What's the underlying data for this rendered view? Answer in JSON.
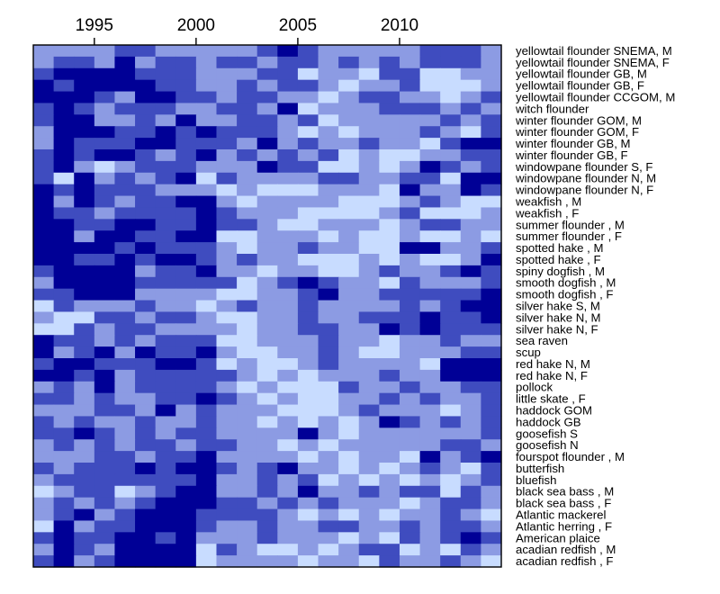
{
  "chart_data": {
    "type": "heatmap",
    "x_tick_labels": [
      "1995",
      "2000",
      "2005",
      "2010"
    ],
    "x_tick_years": [
      1995,
      2000,
      2005,
      2010
    ],
    "years": [
      1992,
      1993,
      1994,
      1995,
      1996,
      1997,
      1998,
      1999,
      2000,
      2001,
      2002,
      2003,
      2004,
      2005,
      2006,
      2007,
      2008,
      2009,
      2010,
      2011,
      2012,
      2013,
      2014
    ],
    "rows": [
      "yellowtail flounder SNEMA, M",
      "yellowtail flounder SNEMA, F",
      "yellowtail flounder GB, M",
      "yellowtail flounder GB, F",
      "yellowtail flounder CCGOM, M",
      "witch flounder",
      "winter flounder GOM, M",
      "winter flounder GOM, F",
      "winter flounder GB, M",
      "winter flounder GB, F",
      "windowpane flounder S, F",
      "windowpane flounder N, M",
      "windowpane flounder N, F",
      "weakfish , M",
      "weakfish , F",
      "summer flounder , M",
      "summer flounder , F",
      "spotted hake , M",
      "spotted hake , F",
      "spiny dogfish , M",
      "smooth dogfish , M",
      "smooth dogfish , F",
      "silver hake S, M",
      "silver hake N, M",
      "silver hake N, F",
      "sea raven",
      "scup",
      "red hake N, M",
      "red hake N, F",
      "pollock",
      "little skate , F",
      "haddock GOM",
      "haddock GB",
      "goosefish S",
      "goosefish N",
      "fourspot flounder , M",
      "butterfish",
      "bluefish",
      "black sea bass , M",
      "black sea bass , F",
      "Atlantic mackerel",
      "Atlantic herring , F",
      "American plaice",
      "acadian redfish , M",
      "acadian redfish , F"
    ],
    "color_levels": [
      "#000096",
      "#3f4cbf",
      "#8c9be3",
      "#c8dcff"
    ],
    "values": [
      [
        2,
        2,
        2,
        2,
        1,
        1,
        2,
        2,
        2,
        2,
        2,
        1,
        0,
        1,
        2,
        2,
        2,
        2,
        2,
        1,
        1,
        1,
        2
      ],
      [
        2,
        1,
        1,
        2,
        0,
        2,
        1,
        1,
        2,
        1,
        1,
        2,
        1,
        1,
        2,
        1,
        2,
        1,
        2,
        1,
        1,
        1,
        2
      ],
      [
        1,
        0,
        0,
        0,
        0,
        1,
        1,
        1,
        2,
        2,
        2,
        1,
        1,
        3,
        2,
        2,
        3,
        1,
        1,
        3,
        3,
        2,
        2
      ],
      [
        0,
        1,
        0,
        0,
        0,
        0,
        1,
        1,
        2,
        2,
        1,
        2,
        1,
        1,
        2,
        3,
        2,
        2,
        1,
        3,
        3,
        3,
        2
      ],
      [
        0,
        0,
        0,
        1,
        2,
        0,
        0,
        1,
        1,
        2,
        1,
        1,
        2,
        2,
        3,
        2,
        1,
        1,
        2,
        2,
        3,
        2,
        1
      ],
      [
        1,
        0,
        1,
        2,
        1,
        1,
        1,
        2,
        2,
        1,
        1,
        2,
        0,
        3,
        2,
        2,
        2,
        1,
        1,
        1,
        2,
        1,
        2
      ],
      [
        1,
        0,
        0,
        2,
        2,
        1,
        2,
        0,
        2,
        2,
        1,
        1,
        2,
        1,
        3,
        2,
        2,
        2,
        2,
        2,
        1,
        2,
        1
      ],
      [
        2,
        0,
        0,
        0,
        1,
        1,
        0,
        1,
        0,
        1,
        1,
        1,
        2,
        3,
        2,
        3,
        2,
        2,
        2,
        1,
        2,
        3,
        1
      ],
      [
        2,
        0,
        1,
        1,
        1,
        0,
        0,
        1,
        1,
        1,
        2,
        0,
        2,
        1,
        2,
        2,
        1,
        2,
        2,
        3,
        1,
        0,
        0
      ],
      [
        1,
        0,
        1,
        0,
        0,
        1,
        2,
        1,
        0,
        2,
        1,
        2,
        1,
        2,
        1,
        3,
        2,
        3,
        3,
        2,
        2,
        1,
        1
      ],
      [
        1,
        0,
        2,
        3,
        2,
        1,
        1,
        1,
        2,
        2,
        2,
        0,
        1,
        1,
        3,
        3,
        2,
        3,
        2,
        0,
        1,
        2,
        1
      ],
      [
        1,
        3,
        0,
        2,
        1,
        2,
        1,
        0,
        3,
        1,
        2,
        2,
        2,
        2,
        1,
        1,
        2,
        2,
        1,
        1,
        3,
        0,
        0
      ],
      [
        0,
        1,
        0,
        1,
        1,
        1,
        2,
        2,
        2,
        3,
        2,
        3,
        3,
        3,
        2,
        2,
        2,
        3,
        0,
        2,
        2,
        0,
        1
      ],
      [
        0,
        2,
        0,
        1,
        2,
        1,
        1,
        0,
        0,
        2,
        3,
        2,
        2,
        2,
        2,
        3,
        3,
        3,
        2,
        1,
        2,
        3,
        3
      ],
      [
        0,
        1,
        1,
        2,
        1,
        1,
        1,
        1,
        0,
        1,
        2,
        2,
        2,
        3,
        3,
        3,
        3,
        2,
        1,
        3,
        3,
        3,
        2
      ],
      [
        0,
        0,
        1,
        1,
        0,
        0,
        1,
        1,
        0,
        1,
        1,
        2,
        3,
        3,
        2,
        2,
        2,
        3,
        2,
        1,
        1,
        2,
        2
      ],
      [
        0,
        0,
        2,
        0,
        0,
        1,
        1,
        0,
        0,
        3,
        3,
        2,
        2,
        2,
        3,
        2,
        3,
        3,
        2,
        3,
        3,
        2,
        3
      ],
      [
        0,
        0,
        0,
        0,
        1,
        0,
        1,
        1,
        1,
        2,
        3,
        2,
        2,
        1,
        2,
        2,
        3,
        3,
        0,
        0,
        2,
        2,
        1
      ],
      [
        0,
        0,
        1,
        1,
        0,
        1,
        0,
        0,
        1,
        2,
        1,
        2,
        2,
        3,
        3,
        3,
        2,
        3,
        2,
        3,
        3,
        2,
        0
      ],
      [
        1,
        0,
        0,
        0,
        0,
        2,
        1,
        1,
        0,
        2,
        2,
        3,
        2,
        2,
        3,
        3,
        2,
        1,
        2,
        2,
        1,
        0,
        1
      ],
      [
        2,
        0,
        0,
        0,
        0,
        1,
        1,
        1,
        1,
        1,
        3,
        2,
        1,
        0,
        1,
        2,
        2,
        3,
        1,
        2,
        2,
        2,
        1
      ],
      [
        1,
        1,
        0,
        0,
        0,
        2,
        2,
        2,
        2,
        3,
        3,
        2,
        2,
        1,
        0,
        2,
        2,
        1,
        1,
        1,
        1,
        1,
        0
      ],
      [
        3,
        1,
        2,
        2,
        2,
        1,
        2,
        2,
        3,
        2,
        1,
        2,
        2,
        1,
        2,
        2,
        2,
        2,
        1,
        2,
        1,
        0,
        0
      ],
      [
        2,
        3,
        3,
        1,
        1,
        2,
        1,
        1,
        2,
        3,
        3,
        2,
        2,
        1,
        2,
        2,
        1,
        1,
        1,
        0,
        1,
        1,
        0
      ],
      [
        3,
        3,
        1,
        2,
        1,
        1,
        2,
        2,
        2,
        2,
        3,
        2,
        2,
        1,
        1,
        2,
        2,
        0,
        1,
        0,
        1,
        1,
        1
      ],
      [
        0,
        1,
        1,
        2,
        1,
        2,
        1,
        1,
        1,
        3,
        3,
        2,
        2,
        2,
        1,
        2,
        2,
        3,
        2,
        2,
        1,
        2,
        2
      ],
      [
        0,
        2,
        1,
        0,
        2,
        0,
        1,
        1,
        0,
        2,
        3,
        3,
        2,
        2,
        1,
        2,
        3,
        3,
        2,
        2,
        2,
        1,
        1
      ],
      [
        1,
        0,
        0,
        1,
        1,
        1,
        0,
        0,
        1,
        3,
        2,
        3,
        3,
        2,
        1,
        2,
        2,
        2,
        2,
        3,
        0,
        0,
        0
      ],
      [
        0,
        0,
        1,
        0,
        2,
        1,
        1,
        1,
        1,
        1,
        2,
        3,
        2,
        3,
        2,
        2,
        2,
        1,
        2,
        2,
        0,
        0,
        0
      ],
      [
        2,
        1,
        2,
        0,
        2,
        1,
        1,
        1,
        1,
        2,
        3,
        2,
        3,
        3,
        3,
        1,
        2,
        2,
        1,
        2,
        2,
        1,
        1
      ],
      [
        1,
        1,
        2,
        1,
        2,
        2,
        1,
        1,
        0,
        1,
        2,
        3,
        2,
        3,
        3,
        2,
        2,
        1,
        2,
        1,
        2,
        2,
        1
      ],
      [
        2,
        2,
        2,
        1,
        1,
        2,
        0,
        2,
        1,
        2,
        2,
        2,
        3,
        3,
        3,
        2,
        1,
        2,
        2,
        2,
        3,
        2,
        1
      ],
      [
        1,
        2,
        1,
        2,
        2,
        1,
        2,
        2,
        1,
        2,
        2,
        3,
        2,
        3,
        2,
        3,
        2,
        0,
        1,
        2,
        1,
        2,
        1
      ],
      [
        1,
        1,
        0,
        1,
        2,
        1,
        2,
        1,
        1,
        2,
        2,
        2,
        2,
        0,
        2,
        3,
        2,
        2,
        2,
        2,
        2,
        2,
        1
      ],
      [
        2,
        1,
        2,
        1,
        2,
        1,
        1,
        2,
        1,
        1,
        2,
        2,
        3,
        2,
        3,
        2,
        2,
        2,
        2,
        2,
        1,
        1,
        2
      ],
      [
        2,
        2,
        2,
        1,
        1,
        2,
        1,
        1,
        0,
        2,
        2,
        2,
        2,
        3,
        2,
        3,
        2,
        2,
        3,
        0,
        2,
        1,
        0
      ],
      [
        1,
        2,
        1,
        1,
        1,
        0,
        1,
        0,
        0,
        1,
        2,
        1,
        0,
        2,
        2,
        3,
        2,
        3,
        2,
        1,
        2,
        3,
        1
      ],
      [
        2,
        1,
        1,
        1,
        1,
        1,
        1,
        1,
        0,
        2,
        2,
        1,
        2,
        1,
        3,
        2,
        3,
        2,
        3,
        2,
        3,
        2,
        1
      ],
      [
        3,
        2,
        1,
        1,
        3,
        2,
        1,
        0,
        0,
        2,
        2,
        1,
        2,
        0,
        2,
        2,
        1,
        2,
        1,
        1,
        3,
        1,
        2
      ],
      [
        2,
        1,
        2,
        1,
        2,
        1,
        0,
        0,
        0,
        1,
        1,
        2,
        1,
        2,
        1,
        2,
        2,
        2,
        3,
        2,
        1,
        1,
        2
      ],
      [
        2,
        1,
        0,
        2,
        1,
        0,
        0,
        0,
        1,
        1,
        1,
        1,
        2,
        3,
        2,
        3,
        2,
        3,
        2,
        2,
        1,
        2,
        3
      ],
      [
        3,
        0,
        2,
        1,
        1,
        0,
        0,
        0,
        1,
        2,
        2,
        1,
        2,
        2,
        1,
        1,
        2,
        2,
        1,
        2,
        1,
        1,
        2
      ],
      [
        1,
        0,
        1,
        1,
        0,
        0,
        1,
        0,
        2,
        2,
        2,
        1,
        2,
        2,
        2,
        3,
        2,
        3,
        1,
        2,
        1,
        0,
        1
      ],
      [
        2,
        0,
        1,
        2,
        0,
        0,
        0,
        0,
        3,
        1,
        2,
        3,
        3,
        2,
        3,
        2,
        1,
        1,
        3,
        2,
        3,
        1,
        2
      ],
      [
        1,
        0,
        2,
        1,
        0,
        0,
        0,
        0,
        3,
        2,
        2,
        2,
        2,
        3,
        2,
        2,
        3,
        1,
        2,
        2,
        1,
        2,
        3
      ]
    ]
  }
}
